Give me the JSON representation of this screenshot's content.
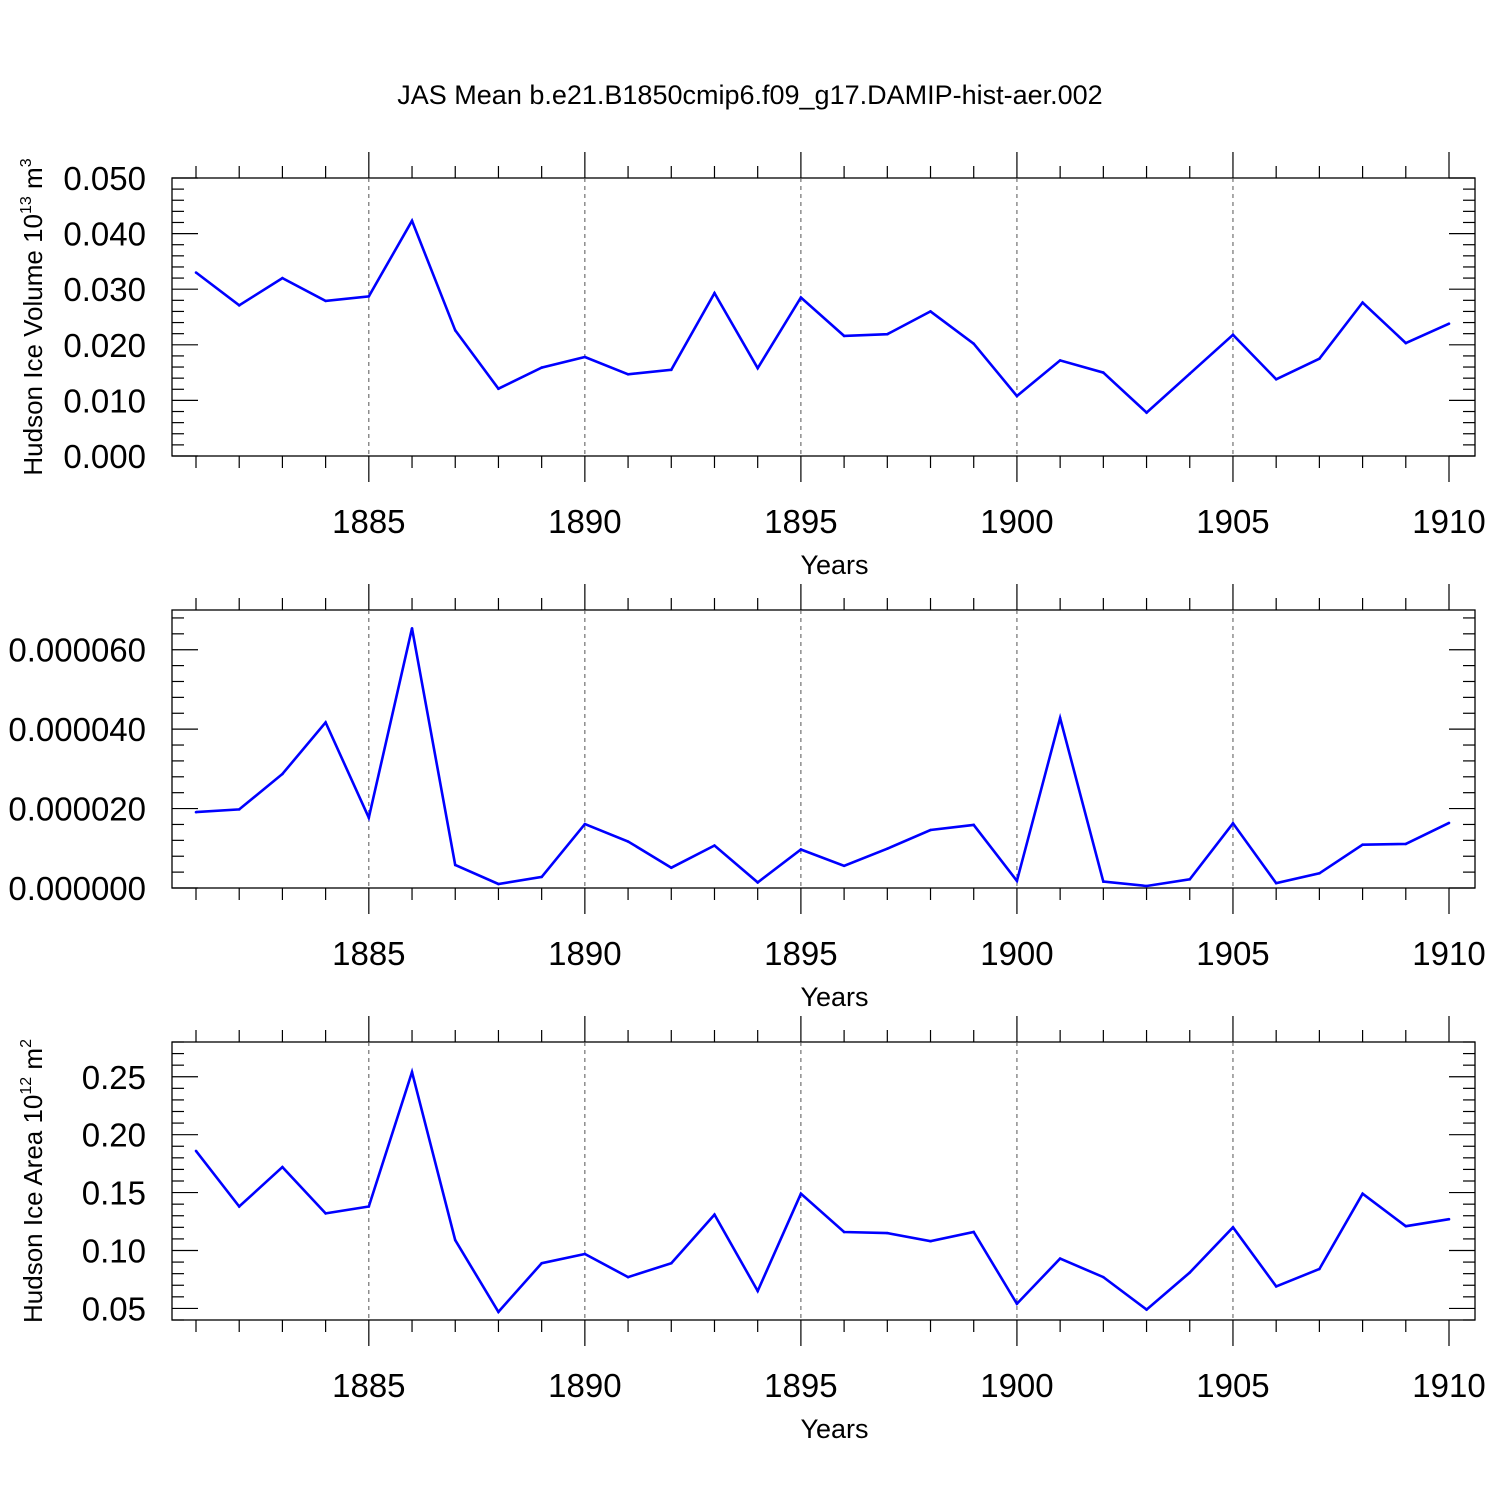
{
  "figure": {
    "title": "JAS Mean b.e21.B1850cmip6.f09_g17.DAMIP-hist-aer.002",
    "line_color": "#0000ff",
    "axis_color": "#000000",
    "grid_color": "#555555"
  },
  "chart_data": [
    {
      "type": "line",
      "title": "JAS Mean b.e21.B1850cmip6.f09_g17.DAMIP-hist-aer.002",
      "xlabel": "Years",
      "ylabel": "Hudson Ice Volume",
      "ylabel_exp": "13",
      "ylabel_unit_exp": "3",
      "xlim": [
        1881,
        1910
      ],
      "ylim": [
        0.0,
        0.05
      ],
      "x_ticks": [
        1885,
        1890,
        1895,
        1900,
        1905,
        1910
      ],
      "y_ticks": [
        0.0,
        0.01,
        0.02,
        0.03,
        0.04,
        0.05
      ],
      "y_tick_labels": [
        "0.000",
        "0.010",
        "0.020",
        "0.030",
        "0.040",
        "0.050"
      ],
      "grid": "vertical dashed at major x ticks",
      "x": [
        1881,
        1882,
        1883,
        1884,
        1885,
        1886,
        1887,
        1888,
        1889,
        1890,
        1891,
        1892,
        1893,
        1894,
        1895,
        1896,
        1897,
        1898,
        1899,
        1900,
        1901,
        1902,
        1903,
        1904,
        1905,
        1906,
        1907,
        1908,
        1909,
        1910
      ],
      "values": [
        0.033,
        0.0271,
        0.032,
        0.0279,
        0.0287,
        0.0423,
        0.0226,
        0.0121,
        0.0159,
        0.0178,
        0.0147,
        0.0155,
        0.0293,
        0.0158,
        0.0285,
        0.0216,
        0.0219,
        0.026,
        0.0202,
        0.0108,
        0.0172,
        0.015,
        0.0078,
        0.0148,
        0.0218,
        0.0138,
        0.0175,
        0.0276,
        0.0203,
        0.0238
      ]
    },
    {
      "type": "line",
      "xlabel": "Years",
      "ylabel": "",
      "xlim": [
        1881,
        1910
      ],
      "ylim": [
        0.0,
        7e-05
      ],
      "x_ticks": [
        1885,
        1890,
        1895,
        1900,
        1905,
        1910
      ],
      "y_ticks": [
        0.0,
        2e-05,
        4e-05,
        6e-05
      ],
      "y_tick_labels": [
        "0.000000",
        "0.000020",
        "0.000040",
        "0.000060"
      ],
      "grid": "vertical dashed at major x ticks",
      "x": [
        1881,
        1882,
        1883,
        1884,
        1885,
        1886,
        1887,
        1888,
        1889,
        1890,
        1891,
        1892,
        1893,
        1894,
        1895,
        1896,
        1897,
        1898,
        1899,
        1900,
        1901,
        1902,
        1903,
        1904,
        1905,
        1906,
        1907,
        1908,
        1909,
        1910
      ],
      "values": [
        1.91e-05,
        1.98e-05,
        2.87e-05,
        4.17e-05,
        1.77e-05,
        6.54e-05,
        5.8e-06,
        1e-06,
        2.8e-06,
        1.61e-05,
        1.17e-05,
        5.1e-06,
        1.07e-05,
        1.4e-06,
        9.7e-06,
        5.6e-06,
        9.9e-06,
        1.46e-05,
        1.59e-05,
        1.8e-06,
        4.28e-05,
        1.6e-06,
        5e-07,
        2.2e-06,
        1.63e-05,
        1.2e-06,
        3.7e-06,
        1.09e-05,
        1.11e-05,
        1.64e-05
      ]
    },
    {
      "type": "line",
      "xlabel": "Years",
      "ylabel": "Hudson Ice Area",
      "ylabel_exp": "12",
      "ylabel_unit_exp": "2",
      "xlim": [
        1881,
        1910
      ],
      "ylim": [
        0.04,
        0.28
      ],
      "x_ticks": [
        1885,
        1890,
        1895,
        1900,
        1905,
        1910
      ],
      "y_ticks": [
        0.05,
        0.1,
        0.15,
        0.2,
        0.25
      ],
      "y_tick_labels": [
        "0.05",
        "0.10",
        "0.15",
        "0.20",
        "0.25"
      ],
      "grid": "vertical dashed at major x ticks",
      "x": [
        1881,
        1882,
        1883,
        1884,
        1885,
        1886,
        1887,
        1888,
        1889,
        1890,
        1891,
        1892,
        1893,
        1894,
        1895,
        1896,
        1897,
        1898,
        1899,
        1900,
        1901,
        1902,
        1903,
        1904,
        1905,
        1906,
        1907,
        1908,
        1909,
        1910
      ],
      "values": [
        0.186,
        0.138,
        0.172,
        0.132,
        0.138,
        0.254,
        0.109,
        0.047,
        0.089,
        0.097,
        0.077,
        0.089,
        0.131,
        0.065,
        0.149,
        0.116,
        0.115,
        0.108,
        0.116,
        0.054,
        0.093,
        0.077,
        0.049,
        0.081,
        0.12,
        0.069,
        0.084,
        0.149,
        0.121,
        0.127
      ]
    }
  ]
}
